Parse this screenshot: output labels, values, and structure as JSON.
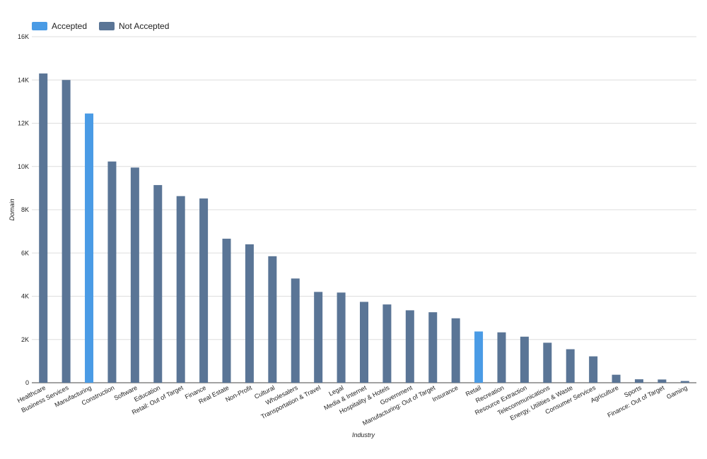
{
  "chart_data": {
    "type": "bar",
    "xlabel": "Industry",
    "ylabel": "Domain",
    "ylim": [
      0,
      16000
    ],
    "yticks": [
      0,
      2000,
      4000,
      6000,
      8000,
      10000,
      12000,
      14000,
      16000
    ],
    "ytick_labels": [
      "0",
      "2K",
      "4K",
      "6K",
      "8K",
      "10K",
      "12K",
      "14K",
      "16K"
    ],
    "grid": true,
    "legend_position": "top-left",
    "series": [
      {
        "name": "Accepted",
        "color": "#4a9be5"
      },
      {
        "name": "Not Accepted",
        "color": "#5a7596"
      }
    ],
    "categories": [
      "Healthcare",
      "Business Services",
      "Manufacturing",
      "Construction",
      "Software",
      "Education",
      "Retail: Out of Target",
      "Finance",
      "Real Estate",
      "Non-Profit",
      "Cultural",
      "Wholesalers",
      "Transportation & Travel",
      "Legal",
      "Media & Internet",
      "Hospitality & Hotels",
      "Government",
      "Manufacturing: Out of Target",
      "Insurance",
      "Retail",
      "Recreation",
      "Resource Extraction",
      "Telecommunications",
      "Energy, Utilities & Waste",
      "Consumer Services",
      "Agriculture",
      "Sports",
      "Finance: Out of Target",
      "Gaming"
    ],
    "accepted": [
      0,
      0,
      12450,
      0,
      0,
      0,
      0,
      0,
      0,
      0,
      0,
      0,
      0,
      0,
      0,
      0,
      0,
      0,
      0,
      2370,
      0,
      0,
      0,
      0,
      0,
      0,
      0,
      0,
      0
    ],
    "not_accepted": [
      14300,
      14000,
      0,
      10230,
      9950,
      9140,
      8630,
      8520,
      6660,
      6400,
      5850,
      4820,
      4200,
      4170,
      3740,
      3620,
      3350,
      3260,
      2980,
      0,
      2330,
      2130,
      1850,
      1550,
      1220,
      370,
      160,
      150,
      80
    ]
  }
}
